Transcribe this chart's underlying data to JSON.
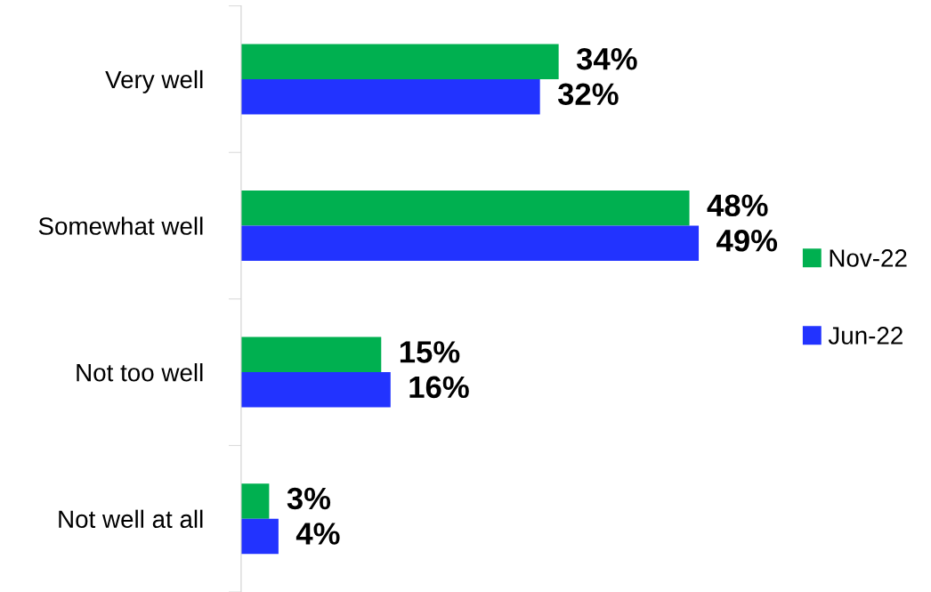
{
  "chart_data": {
    "type": "bar",
    "orientation": "horizontal",
    "categories": [
      "Very well",
      "Somewhat well",
      "Not too well",
      "Not well at all"
    ],
    "series": [
      {
        "name": "Nov-22",
        "color": "#00b050",
        "values": [
          34,
          48,
          15,
          3
        ],
        "value_labels": [
          "34%",
          "48%",
          "15%",
          "3%"
        ]
      },
      {
        "name": "Jun-22",
        "color": "#2233ff",
        "values": [
          32,
          49,
          16,
          4
        ],
        "value_labels": [
          "32%",
          "49%",
          "16%",
          "4%"
        ]
      }
    ],
    "legend": "right",
    "grid": false
  }
}
